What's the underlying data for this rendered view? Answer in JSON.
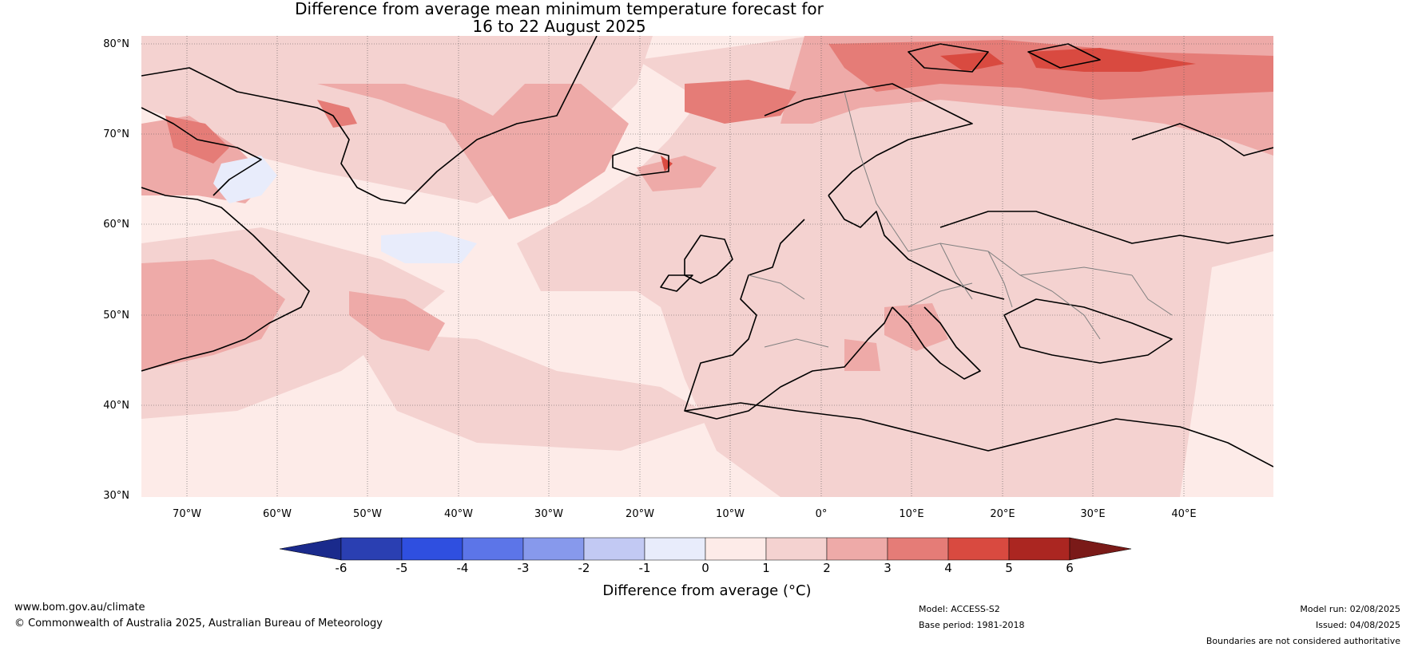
{
  "title": {
    "line1": "Difference from average mean minimum temperature forecast for",
    "line2": "16 to 22 August 2025"
  },
  "map": {
    "lat_labels": [
      "80°N",
      "70°N",
      "60°N",
      "50°N",
      "40°N",
      "30°N"
    ],
    "lon_labels": [
      "70°W",
      "60°W",
      "50°W",
      "40°W",
      "30°W",
      "20°W",
      "10°W",
      "0°",
      "10°E",
      "20°E",
      "30°E",
      "40°E"
    ],
    "background_color": "#fdebe8"
  },
  "colorbar": {
    "ticks": [
      "-6",
      "-5",
      "-4",
      "-3",
      "-2",
      "-1",
      "0",
      "1",
      "2",
      "3",
      "4",
      "5",
      "6"
    ],
    "label": "Difference from average (°C)",
    "colors": [
      "#1a2a8c",
      "#2a3fb2",
      "#2f4fe0",
      "#5c75e8",
      "#8799ec",
      "#c2c9f3",
      "#e8ecfb",
      "#fdebe8",
      "#f4d2d0",
      "#eeaaa8",
      "#e57c77",
      "#d94a40",
      "#ab2621",
      "#7a1a18"
    ]
  },
  "footer": {
    "website": "www.bom.gov.au/climate",
    "copyright": "© Commonwealth of Australia 2025, Australian Bureau of Meteorology",
    "model": "Model: ACCESS-S2",
    "base_period": "Base period: 1981-2018",
    "model_run": "Model run: 02/08/2025",
    "issued": "Issued: 04/08/2025",
    "disclaimer": "Boundaries are not considered authoritative"
  }
}
